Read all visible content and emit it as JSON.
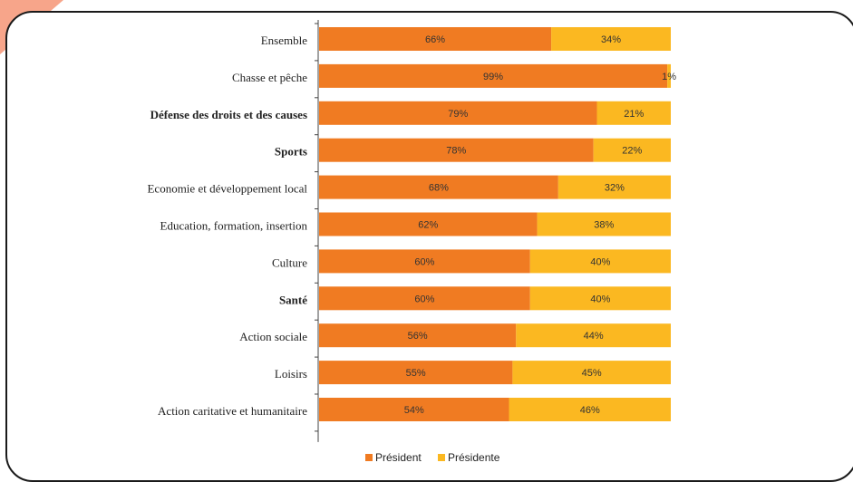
{
  "colors": {
    "president": "#f07b22",
    "presidente": "#fbb821",
    "frame": "#1a1a1a",
    "decor": "#f7a58a"
  },
  "chart_data": {
    "type": "bar",
    "orientation": "horizontal",
    "stacked": true,
    "categories": [
      "Ensemble",
      "Chasse et pêche",
      "Défense des droits et des causes",
      "Sports",
      "Economie et développement local",
      "Education, formation, insertion",
      "Culture",
      "Santé",
      "Action sociale",
      "Loisirs",
      "Action caritative et humanitaire"
    ],
    "bold_categories": [
      "Défense des droits et des causes",
      "Sports",
      "Santé"
    ],
    "series": [
      {
        "name": "Président",
        "color": "#f07b22",
        "values": [
          66,
          99,
          79,
          78,
          68,
          62,
          60,
          60,
          56,
          55,
          54
        ]
      },
      {
        "name": "Présidente",
        "color": "#fbb821",
        "values": [
          34,
          1,
          21,
          22,
          32,
          38,
          40,
          40,
          44,
          45,
          46
        ]
      }
    ],
    "value_suffix": "%",
    "xlim": [
      0,
      100
    ],
    "grid": false,
    "legend_position": "bottom",
    "title": "",
    "xlabel": "",
    "ylabel": ""
  }
}
